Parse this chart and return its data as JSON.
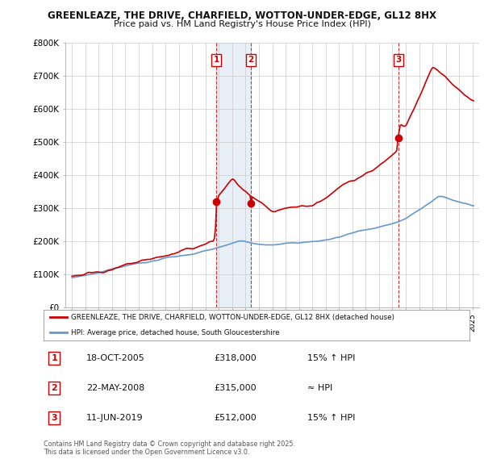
{
  "title_line1": "GREENLEAZE, THE DRIVE, CHARFIELD, WOTTON-UNDER-EDGE, GL12 8HX",
  "title_line2": "Price paid vs. HM Land Registry's House Price Index (HPI)",
  "legend_label_red": "GREENLEAZE, THE DRIVE, CHARFIELD, WOTTON-UNDER-EDGE, GL12 8HX (detached house)",
  "legend_label_blue": "HPI: Average price, detached house, South Gloucestershire",
  "footer": "Contains HM Land Registry data © Crown copyright and database right 2025.\nThis data is licensed under the Open Government Licence v3.0.",
  "sale_points": [
    {
      "label": "1",
      "date": "18-OCT-2005",
      "price": 318000,
      "note": "15% ↑ HPI",
      "x": 2005.8
    },
    {
      "label": "2",
      "date": "22-MAY-2008",
      "price": 315000,
      "note": "≈ HPI",
      "x": 2008.4
    },
    {
      "label": "3",
      "date": "11-JUN-2019",
      "price": 512000,
      "note": "15% ↑ HPI",
      "x": 2019.45
    }
  ],
  "ylim": [
    0,
    800000
  ],
  "yticks": [
    0,
    100000,
    200000,
    300000,
    400000,
    500000,
    600000,
    700000,
    800000
  ],
  "ytick_labels": [
    "£0",
    "£100K",
    "£200K",
    "£300K",
    "£400K",
    "£500K",
    "£600K",
    "£700K",
    "£800K"
  ],
  "xlim": [
    1994.5,
    2025.5
  ],
  "red_color": "#cc0000",
  "blue_color": "#6699cc",
  "blue_fill": "#ddeeff",
  "vline_color": "#cc0000",
  "background_color": "#ffffff",
  "grid_color": "#cccccc"
}
